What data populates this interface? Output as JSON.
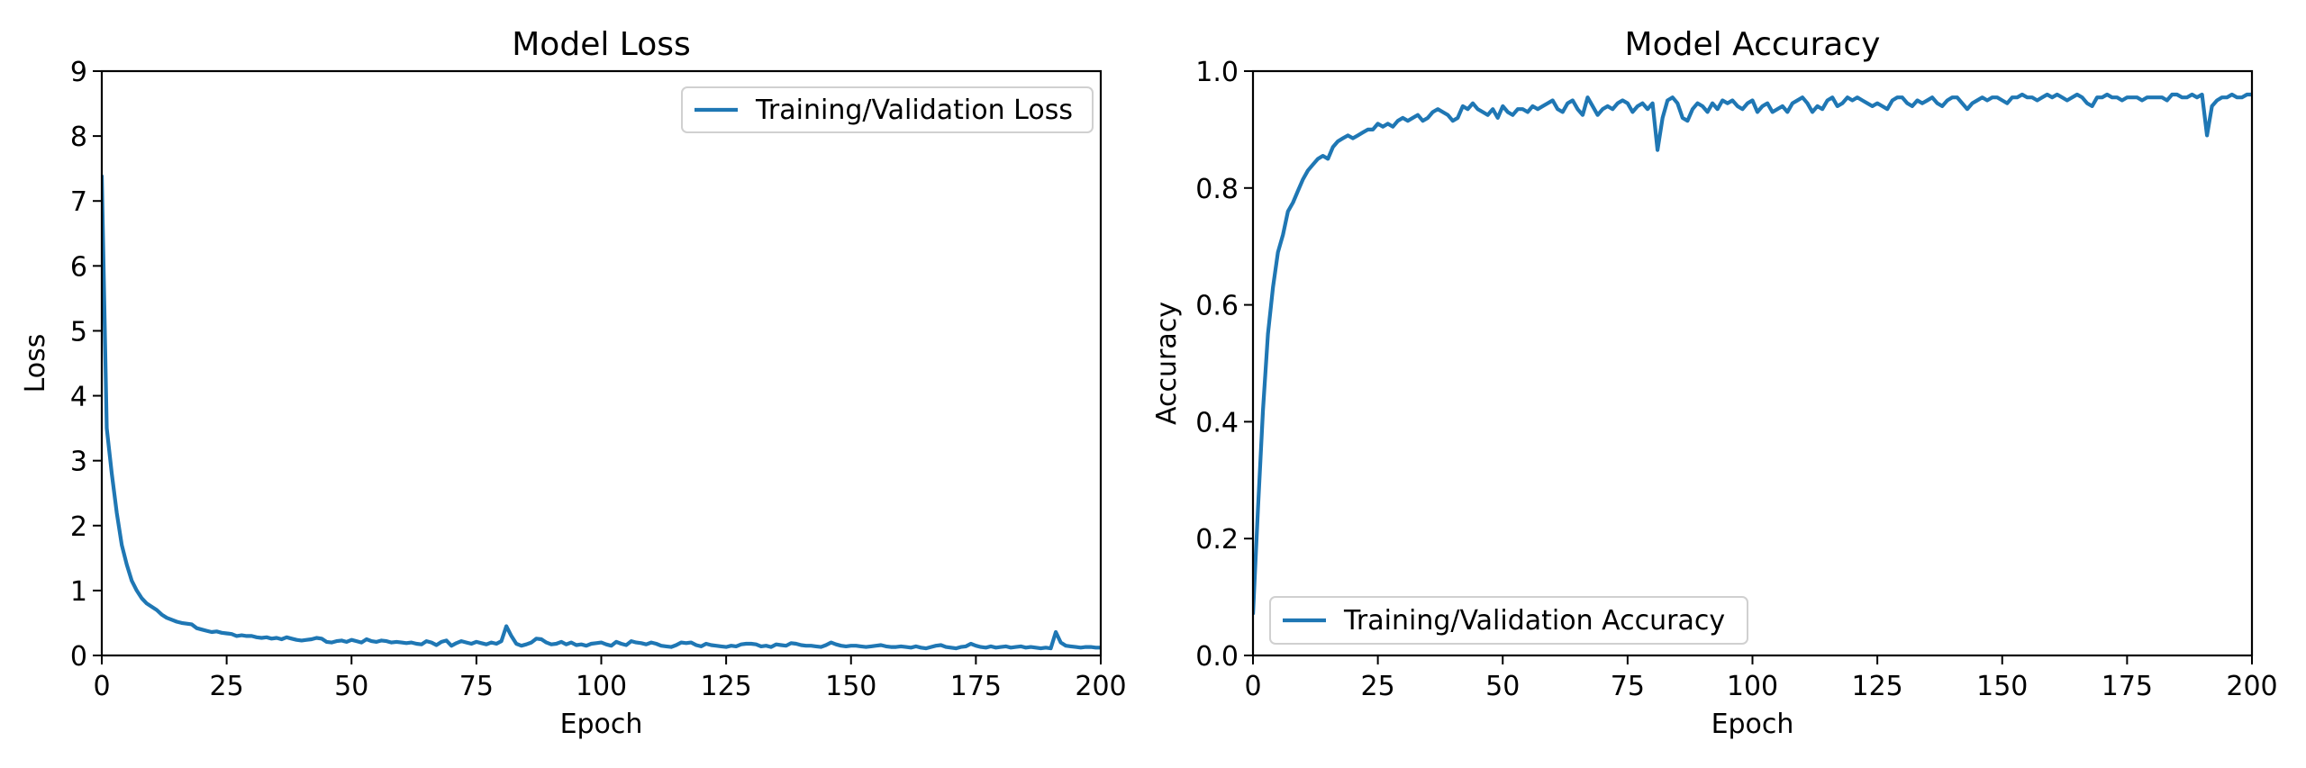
{
  "chart_data": [
    {
      "type": "line",
      "title": "Model Loss",
      "xlabel": "Epoch",
      "ylabel": "Loss",
      "xlim": [
        0,
        200
      ],
      "ylim": [
        0,
        9
      ],
      "xticks": [
        "0",
        "25",
        "50",
        "75",
        "100",
        "125",
        "150",
        "175",
        "200"
      ],
      "yticks": [
        "0",
        "1",
        "2",
        "3",
        "4",
        "5",
        "6",
        "7",
        "8",
        "9"
      ],
      "grid": false,
      "legend_position": "top-right",
      "series": [
        {
          "name": "Training/Validation Loss",
          "color": "#1f77b4",
          "values": [
            7.4,
            3.5,
            2.8,
            2.2,
            1.7,
            1.4,
            1.15,
            1.0,
            0.88,
            0.8,
            0.75,
            0.7,
            0.63,
            0.58,
            0.55,
            0.52,
            0.5,
            0.49,
            0.48,
            0.42,
            0.4,
            0.38,
            0.36,
            0.37,
            0.35,
            0.34,
            0.33,
            0.3,
            0.31,
            0.3,
            0.3,
            0.28,
            0.27,
            0.28,
            0.26,
            0.27,
            0.25,
            0.28,
            0.26,
            0.24,
            0.23,
            0.24,
            0.25,
            0.27,
            0.26,
            0.21,
            0.2,
            0.22,
            0.23,
            0.21,
            0.24,
            0.22,
            0.2,
            0.25,
            0.22,
            0.21,
            0.23,
            0.22,
            0.2,
            0.21,
            0.2,
            0.19,
            0.2,
            0.18,
            0.17,
            0.22,
            0.2,
            0.16,
            0.21,
            0.23,
            0.15,
            0.19,
            0.22,
            0.2,
            0.18,
            0.21,
            0.19,
            0.17,
            0.2,
            0.18,
            0.22,
            0.45,
            0.3,
            0.18,
            0.15,
            0.17,
            0.2,
            0.26,
            0.25,
            0.2,
            0.17,
            0.18,
            0.21,
            0.17,
            0.2,
            0.16,
            0.17,
            0.15,
            0.18,
            0.19,
            0.2,
            0.17,
            0.15,
            0.21,
            0.18,
            0.16,
            0.22,
            0.2,
            0.19,
            0.17,
            0.2,
            0.18,
            0.15,
            0.14,
            0.13,
            0.16,
            0.2,
            0.19,
            0.2,
            0.16,
            0.14,
            0.18,
            0.16,
            0.15,
            0.14,
            0.13,
            0.15,
            0.14,
            0.17,
            0.18,
            0.18,
            0.17,
            0.14,
            0.15,
            0.13,
            0.17,
            0.16,
            0.15,
            0.19,
            0.18,
            0.16,
            0.15,
            0.15,
            0.14,
            0.13,
            0.16,
            0.2,
            0.17,
            0.15,
            0.14,
            0.15,
            0.15,
            0.14,
            0.13,
            0.14,
            0.15,
            0.16,
            0.14,
            0.13,
            0.13,
            0.14,
            0.13,
            0.12,
            0.14,
            0.12,
            0.11,
            0.13,
            0.15,
            0.16,
            0.13,
            0.12,
            0.11,
            0.13,
            0.14,
            0.18,
            0.15,
            0.13,
            0.12,
            0.14,
            0.12,
            0.13,
            0.14,
            0.12,
            0.13,
            0.14,
            0.12,
            0.13,
            0.12,
            0.11,
            0.12,
            0.11,
            0.36,
            0.2,
            0.15,
            0.14,
            0.13,
            0.12,
            0.13,
            0.13,
            0.12,
            0.12
          ]
        }
      ]
    },
    {
      "type": "line",
      "title": "Model Accuracy",
      "xlabel": "Epoch",
      "ylabel": "Accuracy",
      "xlim": [
        0,
        200
      ],
      "ylim": [
        0,
        1
      ],
      "xticks": [
        "0",
        "25",
        "50",
        "75",
        "100",
        "125",
        "150",
        "175",
        "200"
      ],
      "yticks": [
        "0.0",
        "0.2",
        "0.4",
        "0.6",
        "0.8",
        "1.0"
      ],
      "grid": false,
      "legend_position": "bottom-left",
      "series": [
        {
          "name": "Training/Validation Accuracy",
          "color": "#1f77b4",
          "values": [
            0.07,
            0.25,
            0.42,
            0.55,
            0.63,
            0.69,
            0.72,
            0.76,
            0.775,
            0.795,
            0.815,
            0.83,
            0.84,
            0.85,
            0.855,
            0.85,
            0.87,
            0.88,
            0.885,
            0.89,
            0.885,
            0.89,
            0.895,
            0.9,
            0.9,
            0.91,
            0.905,
            0.91,
            0.905,
            0.915,
            0.92,
            0.915,
            0.92,
            0.925,
            0.915,
            0.92,
            0.93,
            0.935,
            0.93,
            0.925,
            0.915,
            0.92,
            0.94,
            0.935,
            0.945,
            0.935,
            0.93,
            0.925,
            0.935,
            0.92,
            0.94,
            0.93,
            0.925,
            0.935,
            0.935,
            0.93,
            0.94,
            0.935,
            0.94,
            0.945,
            0.95,
            0.935,
            0.93,
            0.945,
            0.95,
            0.935,
            0.925,
            0.955,
            0.94,
            0.925,
            0.935,
            0.94,
            0.935,
            0.945,
            0.95,
            0.945,
            0.93,
            0.94,
            0.945,
            0.935,
            0.945,
            0.865,
            0.92,
            0.95,
            0.955,
            0.945,
            0.92,
            0.915,
            0.935,
            0.945,
            0.94,
            0.93,
            0.945,
            0.935,
            0.95,
            0.945,
            0.95,
            0.94,
            0.935,
            0.945,
            0.95,
            0.93,
            0.94,
            0.945,
            0.93,
            0.935,
            0.94,
            0.93,
            0.945,
            0.95,
            0.955,
            0.945,
            0.93,
            0.94,
            0.935,
            0.95,
            0.955,
            0.94,
            0.945,
            0.955,
            0.95,
            0.955,
            0.95,
            0.945,
            0.94,
            0.945,
            0.94,
            0.935,
            0.95,
            0.955,
            0.955,
            0.945,
            0.94,
            0.95,
            0.945,
            0.95,
            0.955,
            0.945,
            0.94,
            0.95,
            0.955,
            0.955,
            0.945,
            0.935,
            0.945,
            0.95,
            0.955,
            0.95,
            0.955,
            0.955,
            0.95,
            0.945,
            0.955,
            0.955,
            0.96,
            0.955,
            0.955,
            0.95,
            0.955,
            0.96,
            0.955,
            0.96,
            0.955,
            0.95,
            0.955,
            0.96,
            0.955,
            0.945,
            0.94,
            0.955,
            0.955,
            0.96,
            0.955,
            0.955,
            0.95,
            0.955,
            0.955,
            0.955,
            0.95,
            0.955,
            0.955,
            0.955,
            0.955,
            0.95,
            0.96,
            0.96,
            0.955,
            0.955,
            0.96,
            0.955,
            0.96,
            0.89,
            0.94,
            0.95,
            0.955,
            0.955,
            0.96,
            0.955,
            0.955,
            0.96,
            0.96
          ]
        }
      ]
    }
  ]
}
